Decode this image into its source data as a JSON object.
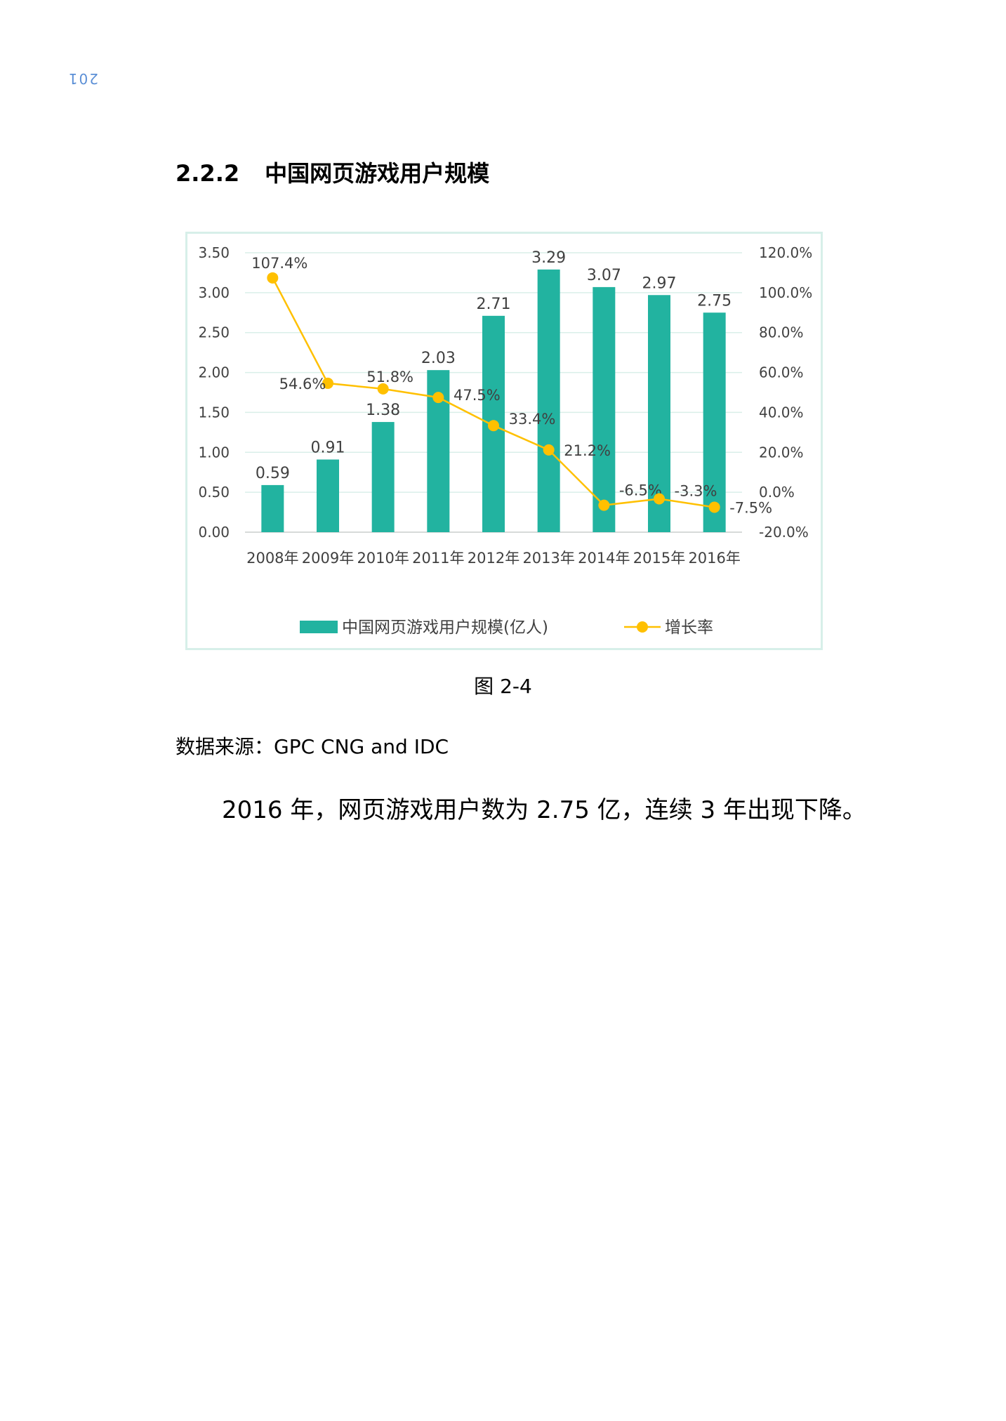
{
  "page_mark": "201",
  "section": {
    "number": "2.2.2",
    "title": "中国网页游戏用户规模"
  },
  "caption": "图 2-4",
  "source": "数据来源：GPC CNG and IDC",
  "body_text": "2016 年，网页游戏用户数为 2.75 亿，连续 3 年出现下降。",
  "chart_data": {
    "type": "bar",
    "categories": [
      "2008年",
      "2009年",
      "2010年",
      "2011年",
      "2012年",
      "2013年",
      "2014年",
      "2015年",
      "2016年"
    ],
    "series": [
      {
        "name": "中国网页游戏用户规模(亿人)",
        "type": "bar",
        "axis": "left",
        "values": [
          0.59,
          0.91,
          1.38,
          2.03,
          2.71,
          3.29,
          3.07,
          2.97,
          2.75
        ],
        "labels": [
          "0.59",
          "0.91",
          "1.38",
          "2.03",
          "2.71",
          "3.29",
          "3.07",
          "2.97",
          "2.75"
        ],
        "color": "#22b3a0"
      },
      {
        "name": "增长率",
        "type": "line",
        "axis": "right",
        "values": [
          107.4,
          54.6,
          51.8,
          47.5,
          33.4,
          21.2,
          -6.5,
          -3.3,
          -7.5
        ],
        "labels": [
          "107.4%",
          "54.6%",
          "51.8%",
          "47.5%",
          "33.4%",
          "21.2%",
          "-6.5%",
          "-3.3%",
          "-7.5%"
        ],
        "color": "#ffc000"
      }
    ],
    "left_axis": {
      "ylim": [
        0,
        3.5
      ],
      "ticks": [
        "0.00",
        "0.50",
        "1.00",
        "1.50",
        "2.00",
        "2.50",
        "3.00",
        "3.50"
      ]
    },
    "right_axis": {
      "ylim": [
        -20,
        120
      ],
      "ticks": [
        "-20.0%",
        "0.0%",
        "20.0%",
        "40.0%",
        "60.0%",
        "80.0%",
        "100.0%",
        "120.0%"
      ]
    },
    "grid": true,
    "legend": "bottom",
    "gridline_color": "#d9efe9",
    "text_color": "#404040"
  }
}
